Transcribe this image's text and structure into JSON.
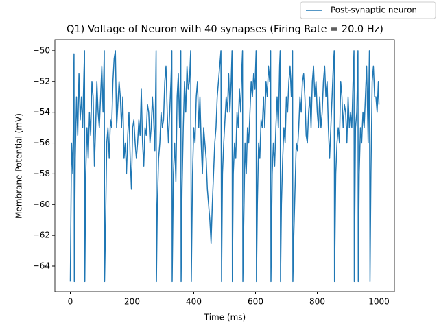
{
  "chart_data": {
    "type": "line",
    "title": "Q1) Voltage of Neuron with 40 synapses (Firing Rate = 20.0 Hz)",
    "x_label": "Time (ms)",
    "y_label": "Membrane Potential (mV)",
    "x": [
      0,
      4,
      8,
      12,
      13,
      16,
      20,
      24,
      28,
      32,
      36,
      40,
      44,
      46,
      47,
      50,
      54,
      58,
      62,
      66,
      70,
      74,
      78,
      82,
      86,
      90,
      94,
      98,
      102,
      106,
      110,
      111,
      114,
      118,
      122,
      126,
      130,
      134,
      138,
      142,
      146,
      150,
      154,
      158,
      162,
      166,
      170,
      174,
      178,
      182,
      186,
      190,
      194,
      198,
      202,
      206,
      210,
      214,
      218,
      222,
      226,
      230,
      234,
      238,
      242,
      246,
      250,
      254,
      258,
      262,
      266,
      270,
      274,
      278,
      279,
      282,
      286,
      290,
      294,
      298,
      302,
      306,
      310,
      314,
      318,
      322,
      326,
      329,
      330,
      334,
      338,
      342,
      346,
      350,
      354,
      358,
      359,
      362,
      366,
      370,
      374,
      378,
      382,
      386,
      390,
      392,
      396,
      400,
      404,
      408,
      412,
      416,
      420,
      424,
      428,
      432,
      436,
      440,
      444,
      448,
      452,
      456,
      460,
      464,
      468,
      472,
      476,
      480,
      484,
      488,
      490,
      493,
      497,
      501,
      505,
      509,
      513,
      517,
      521,
      524,
      525,
      528,
      532,
      536,
      540,
      544,
      548,
      552,
      556,
      558,
      559,
      562,
      566,
      570,
      574,
      578,
      582,
      586,
      590,
      594,
      598,
      602,
      603,
      606,
      610,
      614,
      618,
      622,
      626,
      630,
      634,
      638,
      642,
      646,
      649,
      650,
      654,
      658,
      662,
      666,
      670,
      674,
      678,
      680,
      681,
      684,
      688,
      692,
      696,
      700,
      704,
      708,
      712,
      716,
      720,
      721,
      724,
      728,
      732,
      736,
      740,
      744,
      748,
      752,
      756,
      760,
      764,
      768,
      772,
      776,
      780,
      784,
      788,
      792,
      796,
      800,
      804,
      808,
      812,
      816,
      820,
      824,
      828,
      832,
      836,
      840,
      844,
      848,
      852,
      855,
      856,
      860,
      864,
      868,
      872,
      876,
      880,
      884,
      888,
      892,
      896,
      900,
      904,
      908,
      912,
      916,
      919,
      920,
      924,
      928,
      932,
      933,
      936,
      940,
      944,
      948,
      952,
      956,
      960,
      965,
      969,
      971,
      974,
      978,
      982,
      986,
      990,
      994,
      998,
      1000
    ],
    "series": [
      {
        "name": "Post-synaptic neuron",
        "color": "#1f77b4",
        "values": [
          -65,
          -56,
          -58,
          -50.2,
          -65,
          -57,
          -53,
          -55.5,
          -51.5,
          -54.5,
          -53,
          -55,
          -51.5,
          -50,
          -65,
          -58,
          -55,
          -57,
          -54,
          -55.5,
          -52,
          -53,
          -57.5,
          -55,
          -52,
          -54,
          -55,
          -53,
          -51,
          -54,
          -50,
          -65,
          -61.5,
          -56,
          -55,
          -57,
          -54.5,
          -55,
          -52,
          -50.5,
          -50,
          -55,
          -53.5,
          -52,
          -53,
          -55,
          -53,
          -57,
          -56,
          -58,
          -55.5,
          -54,
          -57,
          -59,
          -55,
          -54.5,
          -56,
          -57,
          -56,
          -54.5,
          -55.5,
          -52.5,
          -56,
          -57.5,
          -55,
          -55.5,
          -53.5,
          -54,
          -56,
          -55,
          -53,
          -54.5,
          -56.5,
          -50,
          -65,
          -60,
          -57,
          -56,
          -54,
          -55,
          -54.5,
          -52,
          -51,
          -54,
          -56,
          -54,
          -52,
          -50,
          -65,
          -58,
          -56,
          -58.5,
          -53,
          -51.5,
          -55,
          -50,
          -65,
          -59,
          -55,
          -52,
          -54,
          -51,
          -52.5,
          -52,
          -50,
          -65,
          -58,
          -55,
          -56,
          -53,
          -52,
          -55,
          -53,
          -56,
          -58,
          -55,
          -56,
          -57,
          -59,
          -60,
          -61,
          -62.5,
          -60,
          -58,
          -56,
          -55,
          -53,
          -52,
          -51,
          -50,
          -65,
          -58,
          -56,
          -54.5,
          -53,
          -54,
          -51.5,
          -54,
          -52,
          -50,
          -65,
          -58,
          -56,
          -57,
          -54,
          -55,
          -52.5,
          -54,
          -51,
          -50,
          -65,
          -61,
          -56,
          -58,
          -55,
          -56,
          -54,
          -52,
          -53,
          -51.5,
          -52.5,
          -50,
          -65,
          -60,
          -56,
          -57,
          -54.5,
          -55,
          -53,
          -55,
          -52,
          -53,
          -51,
          -52,
          -50,
          -65,
          -58,
          -56,
          -57.5,
          -55,
          -53,
          -55,
          -51,
          -50,
          -65,
          -60,
          -57,
          -55,
          -56,
          -53,
          -54,
          -52,
          -51,
          -53,
          -50,
          -65,
          -62,
          -59,
          -56,
          -56.5,
          -55,
          -53,
          -54,
          -52,
          -51.5,
          -53,
          -55.5,
          -56,
          -54,
          -53,
          -55,
          -52,
          -51,
          -53,
          -52,
          -54,
          -55,
          -53,
          -55,
          -54,
          -52,
          -51,
          -53,
          -52,
          -55,
          -57,
          -55,
          -53,
          -51,
          -50,
          -65,
          -58,
          -56,
          -55,
          -56,
          -52,
          -53,
          -55,
          -53.5,
          -54,
          -56,
          -53,
          -55,
          -54,
          -55,
          -52,
          -50,
          -65,
          -55,
          -54,
          -50,
          -65,
          -58,
          -55,
          -56,
          -54,
          -55,
          -53,
          -51,
          -56,
          -50,
          -65,
          -58,
          -52,
          -51,
          -53,
          -53,
          -54,
          -52,
          -53.5
        ]
      }
    ],
    "xlim": [
      -50,
      1050
    ],
    "ylim": [
      -65.65,
      -49.29
    ],
    "xticks": [
      0,
      200,
      400,
      600,
      800,
      1000
    ],
    "yticks": [
      {
        "value": -64,
        "label": "−64"
      },
      {
        "value": -62,
        "label": "−62"
      },
      {
        "value": -60,
        "label": "−60"
      },
      {
        "value": -58,
        "label": "−58"
      },
      {
        "value": -56,
        "label": "−56"
      },
      {
        "value": -54,
        "label": "−54"
      },
      {
        "value": -52,
        "label": "−52"
      },
      {
        "value": -50,
        "label": "−50"
      }
    ],
    "legend": "upper right"
  }
}
